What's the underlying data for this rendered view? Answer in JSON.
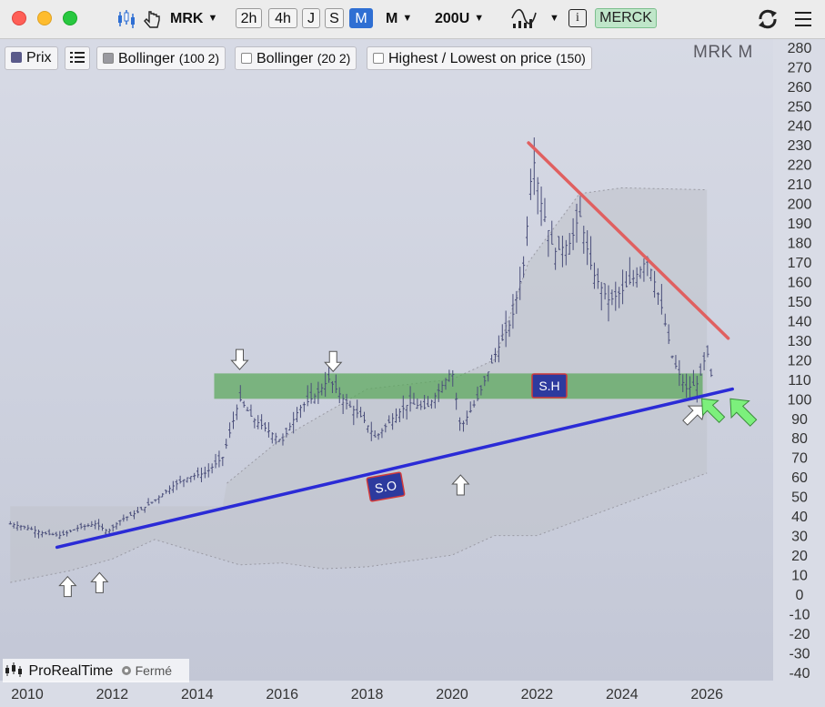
{
  "toolbar": {
    "symbol": "MRK",
    "timeframes": [
      "2h",
      "4h",
      "J",
      "S",
      "M"
    ],
    "active_timeframe": "M",
    "period_selector": "M",
    "bars_selector": "200U",
    "info_icon": "i",
    "instrument_name": "MERCK"
  },
  "legend": {
    "price_label": "Prix",
    "price_color": "#5a5a8a",
    "bollinger1_label": "Bollinger",
    "bollinger1_params": "(100 2)",
    "bollinger2_label": "Bollinger",
    "bollinger2_params": "(20 2)",
    "hilo_label": "Highest / Lowest on price",
    "hilo_params": "(150)"
  },
  "corner_label": "MRK  M",
  "footer": {
    "brand": "ProRealTime",
    "status": "Fermé"
  },
  "annotations": {
    "support_zone_label": "S.H",
    "trendline_label": "S.O"
  },
  "colors": {
    "candle": "#4a4e7a",
    "resistance_line": "#e06060",
    "support_line": "#2b2bd6",
    "zone": "#5aa85a",
    "green_arrow": "#7cf07c",
    "label_bg": "#2d3a9e",
    "label_border": "#d23a3a",
    "band_fill": "#bfc2cb"
  },
  "chart_data": {
    "type": "candlestick",
    "title": "",
    "xlabel": "",
    "ylabel": "",
    "x_ticks": [
      "2010",
      "2012",
      "2014",
      "2016",
      "2018",
      "2020",
      "2022",
      "2024",
      "2026"
    ],
    "y_ticks": [
      280,
      270,
      260,
      250,
      240,
      230,
      220,
      210,
      200,
      190,
      180,
      170,
      160,
      150,
      140,
      130,
      120,
      110,
      100,
      90,
      80,
      70,
      60,
      50,
      40,
      30,
      20,
      10,
      0,
      -10,
      -20,
      -30,
      -40
    ],
    "ylim": [
      -40,
      280
    ],
    "xlim": [
      2009.5,
      2027.6
    ],
    "price_series": [
      [
        2009.6,
        36
      ],
      [
        2010.0,
        34
      ],
      [
        2010.4,
        31
      ],
      [
        2010.8,
        30
      ],
      [
        2011.2,
        34
      ],
      [
        2011.6,
        36
      ],
      [
        2011.9,
        32
      ],
      [
        2012.2,
        38
      ],
      [
        2012.6,
        42
      ],
      [
        2013.0,
        48
      ],
      [
        2013.4,
        55
      ],
      [
        2013.8,
        60
      ],
      [
        2014.2,
        62
      ],
      [
        2014.6,
        70
      ],
      [
        2015.0,
        100
      ],
      [
        2015.3,
        90
      ],
      [
        2015.6,
        85
      ],
      [
        2016.0,
        78
      ],
      [
        2016.4,
        95
      ],
      [
        2016.8,
        102
      ],
      [
        2017.1,
        110
      ],
      [
        2017.5,
        98
      ],
      [
        2017.9,
        90
      ],
      [
        2018.2,
        80
      ],
      [
        2018.6,
        90
      ],
      [
        2019.0,
        98
      ],
      [
        2019.4,
        95
      ],
      [
        2019.8,
        108
      ],
      [
        2020.0,
        115
      ],
      [
        2020.2,
        85
      ],
      [
        2020.6,
        100
      ],
      [
        2021.0,
        122
      ],
      [
        2021.4,
        140
      ],
      [
        2021.7,
        170
      ],
      [
        2021.9,
        225
      ],
      [
        2022.1,
        200
      ],
      [
        2022.4,
        175
      ],
      [
        2022.8,
        180
      ],
      [
        2023.0,
        195
      ],
      [
        2023.3,
        165
      ],
      [
        2023.7,
        150
      ],
      [
        2024.0,
        155
      ],
      [
        2024.4,
        165
      ],
      [
        2024.6,
        172
      ],
      [
        2024.9,
        150
      ],
      [
        2025.2,
        120
      ],
      [
        2025.5,
        105
      ],
      [
        2025.8,
        108
      ],
      [
        2026.0,
        125
      ],
      [
        2026.1,
        112
      ]
    ],
    "bollinger_100_2": {
      "upper": [
        [
          2014.6,
          55
        ],
        [
          2016,
          80
        ],
        [
          2018,
          105
        ],
        [
          2020,
          110
        ],
        [
          2021,
          120
        ],
        [
          2021.8,
          170
        ],
        [
          2023,
          205
        ],
        [
          2024,
          208
        ],
        [
          2026,
          207
        ]
      ],
      "lower": [
        [
          2009.6,
          6
        ],
        [
          2011,
          12
        ],
        [
          2012,
          18
        ],
        [
          2013,
          28
        ],
        [
          2015,
          15
        ],
        [
          2016,
          16
        ],
        [
          2017,
          13
        ],
        [
          2018,
          14
        ],
        [
          2020,
          20
        ],
        [
          2021,
          30
        ],
        [
          2022,
          30
        ],
        [
          2024,
          46
        ],
        [
          2026,
          62
        ]
      ]
    },
    "support_zone": {
      "low": 100,
      "high": 113,
      "x_start": 2014.4,
      "x_end": 2025.9
    },
    "resistance_line": {
      "x1": 2021.8,
      "y1": 231,
      "x2": 2026.5,
      "y2": 131
    },
    "support_trendline": {
      "x1": 2010.7,
      "y1": 24,
      "x2": 2026.6,
      "y2": 105
    },
    "white_arrows_up": [
      [
        2010.95,
        19
      ],
      [
        2011.7,
        21
      ],
      [
        2020.2,
        71
      ]
    ],
    "white_arrows_down": [
      [
        2015.0,
        120
      ],
      [
        2017.2,
        119
      ]
    ],
    "green_arrows": [
      [
        2025.85,
        95
      ],
      [
        2026.5,
        96
      ]
    ]
  }
}
